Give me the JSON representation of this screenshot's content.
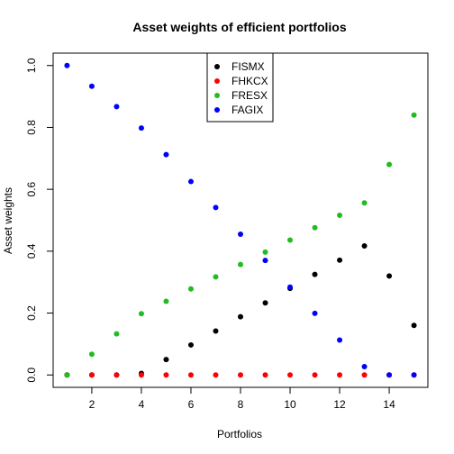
{
  "chart_data": {
    "type": "scatter",
    "title": "Asset weights of efficient portfolios",
    "xlabel": "Portfolios",
    "ylabel": "Asset weights",
    "xlim": [
      0.44,
      15.56
    ],
    "ylim": [
      -0.04,
      1.04
    ],
    "xticks": [
      2,
      4,
      6,
      8,
      10,
      12,
      14
    ],
    "yticks": [
      0.0,
      0.2,
      0.4,
      0.6,
      0.8,
      1.0
    ],
    "ytick_labels": [
      "0.0",
      "0.2",
      "0.4",
      "0.6",
      "0.8",
      "1.0"
    ],
    "grid": false,
    "legend_position": "top-center",
    "x": [
      1,
      2,
      3,
      4,
      5,
      6,
      7,
      8,
      9,
      10,
      11,
      12,
      13,
      14,
      15
    ],
    "series": [
      {
        "name": "FISMX",
        "color": "#000000",
        "values": [
          0.0,
          0.0,
          0.0,
          0.005,
          0.05,
          0.097,
          0.142,
          0.188,
          0.233,
          0.28,
          0.325,
          0.371,
          0.417,
          0.32,
          0.16
        ]
      },
      {
        "name": "FHKCX",
        "color": "#ff0000",
        "values": [
          0.0,
          0.0,
          0.0,
          0.0,
          0.0,
          0.0,
          0.0,
          0.0,
          0.0,
          0.0,
          0.0,
          0.0,
          0.0,
          0.0,
          0.0
        ]
      },
      {
        "name": "FRESX",
        "color": "#22bb22",
        "values": [
          0.0,
          0.067,
          0.133,
          0.198,
          0.238,
          0.278,
          0.317,
          0.357,
          0.397,
          0.436,
          0.476,
          0.516,
          0.556,
          0.68,
          0.84
        ]
      },
      {
        "name": "FAGIX",
        "color": "#0000ff",
        "values": [
          1.0,
          0.933,
          0.867,
          0.798,
          0.712,
          0.625,
          0.541,
          0.455,
          0.37,
          0.284,
          0.199,
          0.113,
          0.027,
          0.0,
          0.0
        ]
      }
    ]
  }
}
